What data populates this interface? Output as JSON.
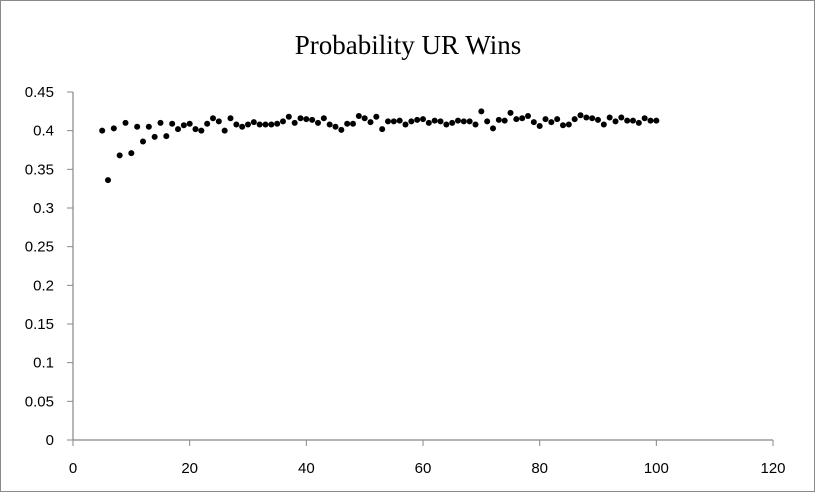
{
  "chart_data": {
    "type": "scatter",
    "title": "Probability UR Wins",
    "xlabel": "",
    "ylabel": "",
    "xlim": [
      0,
      120
    ],
    "ylim": [
      0,
      0.45
    ],
    "grid": false,
    "legend": "none",
    "marker_color": "#000000",
    "x_ticks": [
      "0",
      "20",
      "40",
      "60",
      "80",
      "100",
      "120"
    ],
    "y_ticks": [
      "0",
      "0.05",
      "0.1",
      "0.15",
      "0.2",
      "0.25",
      "0.3",
      "0.35",
      "0.4",
      "0.45"
    ],
    "x": [
      5,
      6,
      7,
      8,
      9,
      10,
      11,
      12,
      13,
      14,
      15,
      16,
      17,
      18,
      19,
      20,
      21,
      22,
      23,
      24,
      25,
      26,
      27,
      28,
      29,
      30,
      31,
      32,
      33,
      34,
      35,
      36,
      37,
      38,
      39,
      40,
      41,
      42,
      43,
      44,
      45,
      46,
      47,
      48,
      49,
      50,
      51,
      52,
      53,
      54,
      55,
      56,
      57,
      58,
      59,
      60,
      61,
      62,
      63,
      64,
      65,
      66,
      67,
      68,
      69,
      70,
      71,
      72,
      73,
      74,
      75,
      76,
      77,
      78,
      79,
      80,
      81,
      82,
      83,
      84,
      85,
      86,
      87,
      88,
      89,
      90,
      91,
      92,
      93,
      94,
      95,
      96,
      97,
      98,
      99,
      100
    ],
    "y": [
      0.4,
      0.336,
      0.403,
      0.368,
      0.41,
      0.371,
      0.405,
      0.386,
      0.405,
      0.392,
      0.41,
      0.393,
      0.409,
      0.402,
      0.407,
      0.409,
      0.402,
      0.4,
      0.409,
      0.416,
      0.412,
      0.4,
      0.416,
      0.408,
      0.405,
      0.408,
      0.411,
      0.408,
      0.408,
      0.408,
      0.409,
      0.412,
      0.418,
      0.41,
      0.416,
      0.415,
      0.414,
      0.41,
      0.416,
      0.408,
      0.405,
      0.401,
      0.409,
      0.409,
      0.419,
      0.416,
      0.411,
      0.418,
      0.402,
      0.412,
      0.412,
      0.413,
      0.408,
      0.412,
      0.414,
      0.415,
      0.41,
      0.413,
      0.412,
      0.408,
      0.41,
      0.413,
      0.412,
      0.412,
      0.408,
      0.425,
      0.412,
      0.403,
      0.414,
      0.413,
      0.423,
      0.415,
      0.416,
      0.419,
      0.411,
      0.406,
      0.415,
      0.411,
      0.415,
      0.407,
      0.408,
      0.415,
      0.42,
      0.417,
      0.416,
      0.414,
      0.408,
      0.417,
      0.412,
      0.417,
      0.413,
      0.413,
      0.41,
      0.416,
      0.413,
      0.413
    ]
  }
}
